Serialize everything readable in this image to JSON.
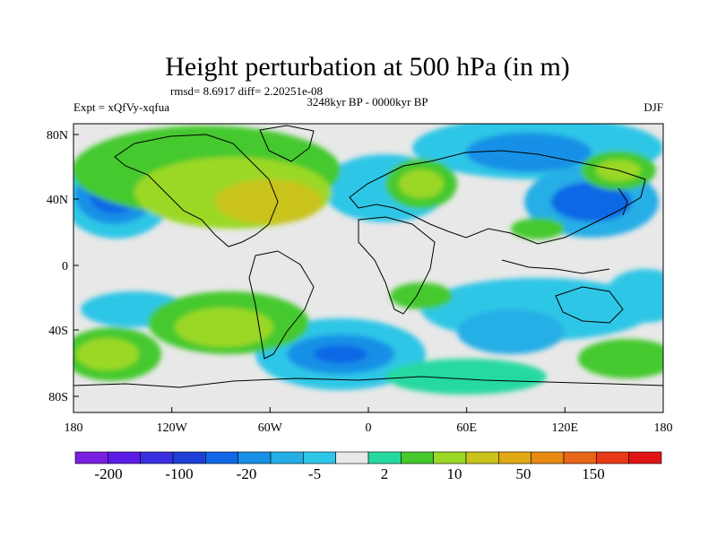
{
  "title": "Height perturbation at 500 hPa (in m)",
  "stats": "rmsd= 8.6917 diff= 2.20251e-08",
  "experiment": "Expt = xQfVy-xqfua",
  "period": "3248kyr BP - 0000kyr BP",
  "season": "DJF",
  "lat_ticks": [
    "80N",
    "40N",
    "0",
    "40S",
    "80S"
  ],
  "lon_ticks": [
    "180",
    "120W",
    "60W",
    "0",
    "60E",
    "120E",
    "180"
  ],
  "colorbar": {
    "colors": [
      "#7b1fe0",
      "#5b1ce6",
      "#3a2fe0",
      "#1f3fd6",
      "#0f67e6",
      "#1890e6",
      "#25aee6",
      "#2ec6e6",
      "#e8e8e8",
      "#27d9a0",
      "#45c92e",
      "#9bd826",
      "#c9c31a",
      "#e0a814",
      "#e88a12",
      "#e8661a",
      "#e83a18",
      "#e01414"
    ],
    "labels": [
      "-200",
      "-100",
      "-20",
      "-5",
      "2",
      "10",
      "50",
      "150"
    ]
  }
}
